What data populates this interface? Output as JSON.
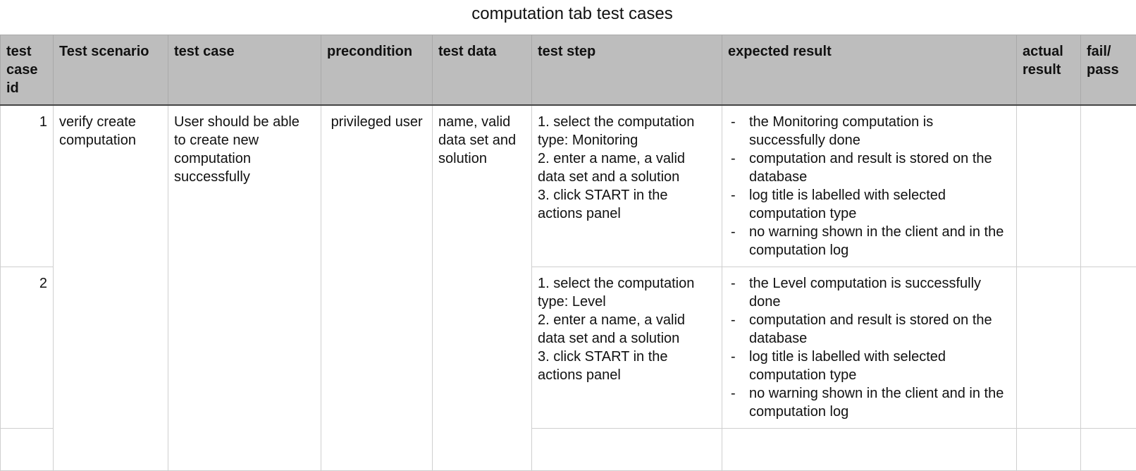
{
  "title": "computation tab test cases",
  "columns": [
    "test case id",
    "Test scenario",
    "test case",
    "precondition",
    "test data",
    "test step",
    "expected result",
    "actual result",
    "fail/ pass"
  ],
  "shared": {
    "scenario": "verify create computation",
    "test_case": "User should be able to create new computation successfully",
    "precondition": " privileged user",
    "test_data": "name, valid data set and solution"
  },
  "rows": [
    {
      "id": "1",
      "steps": [
        "1. select the computation type: Monitoring",
        "2. enter a name, a valid data set and a solution",
        "3. click START in the actions panel"
      ],
      "expected": [
        "the Monitoring computation is successfully done",
        "computation and result is stored on the database",
        "log title is labelled with selected computation type",
        "no warning shown in the client and in the computation log"
      ],
      "actual": "",
      "status": ""
    },
    {
      "id": "2",
      "steps": [
        "1. select the computation type: Level",
        "2. enter a name, a valid data set and a solution",
        "3. click START in the actions panel"
      ],
      "expected": [
        "the Level computation is successfully done",
        "computation and result is stored on the database",
        "log title is labelled with selected computation type",
        "no warning shown in the client and in the computation log"
      ],
      "actual": "",
      "status": ""
    }
  ]
}
